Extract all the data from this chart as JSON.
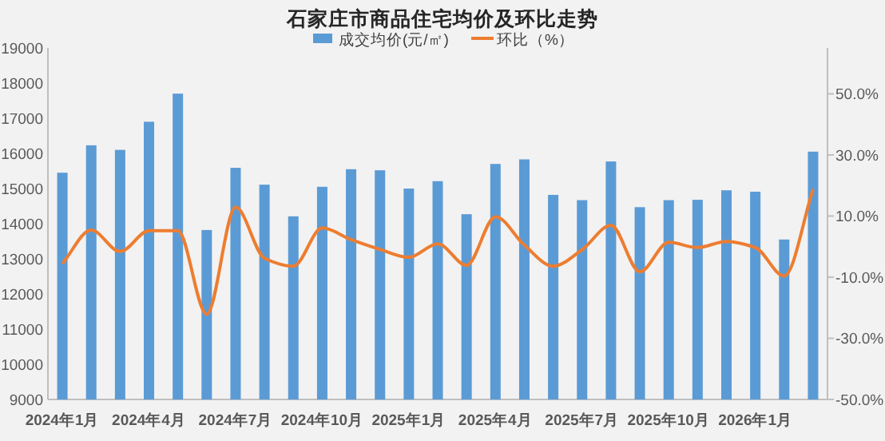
{
  "chart_data": {
    "type": "bar",
    "title": "石家庄市商品住宅均价及环比走势",
    "categories": [
      "2024年1月",
      null,
      null,
      "2024年4月",
      null,
      null,
      "2024年7月",
      null,
      null,
      "2024年10月",
      null,
      null,
      "2025年1月",
      null,
      null,
      "2025年4月",
      null,
      null,
      "2025年7月",
      null,
      null,
      "2025年10月",
      null,
      null,
      "2026年1月",
      null,
      null
    ],
    "series": [
      {
        "name": "成交均价(元/㎡)",
        "color": "#5b9bd5",
        "values": [
          15450,
          16230,
          16100,
          16900,
          17700,
          13820,
          15590,
          15110,
          14210,
          15050,
          15550,
          15520,
          15000,
          15210,
          14270,
          15700,
          15830,
          14820,
          14670,
          15770,
          14470,
          14670,
          14680,
          14950,
          14910,
          13550,
          16050
        ]
      },
      {
        "name": "环比（%）",
        "type": "line",
        "axis": "y2",
        "color": "#ed7d31",
        "values": [
          -5.6,
          5.4,
          -1.6,
          5.2,
          5.2,
          -22.1,
          12.9,
          -3.8,
          -6.4,
          6.1,
          2.3,
          -0.9,
          -3.5,
          0.9,
          -6.1,
          9.8,
          0.5,
          -6.4,
          -1,
          7.0,
          -8.2,
          1.4,
          -0.3,
          1.7,
          -0.3,
          -9.6,
          18.8
        ]
      }
    ],
    "ylim": [
      9000,
      19000
    ],
    "yticks": [
      9000,
      10000,
      11000,
      12000,
      13000,
      14000,
      15000,
      16000,
      17000,
      18000,
      19000
    ],
    "y2lim": [
      -50,
      65
    ],
    "y2ticks": [
      {
        "value": -50,
        "label": "-50.0%"
      },
      {
        "value": -30,
        "label": "-30.0%"
      },
      {
        "value": -10,
        "label": "-10.0%"
      },
      {
        "value": 10,
        "label": "10.0%"
      },
      {
        "value": 30,
        "label": "30.0%"
      },
      {
        "value": 50,
        "label": "50.0%"
      }
    ],
    "legend": "top",
    "grid": false
  }
}
